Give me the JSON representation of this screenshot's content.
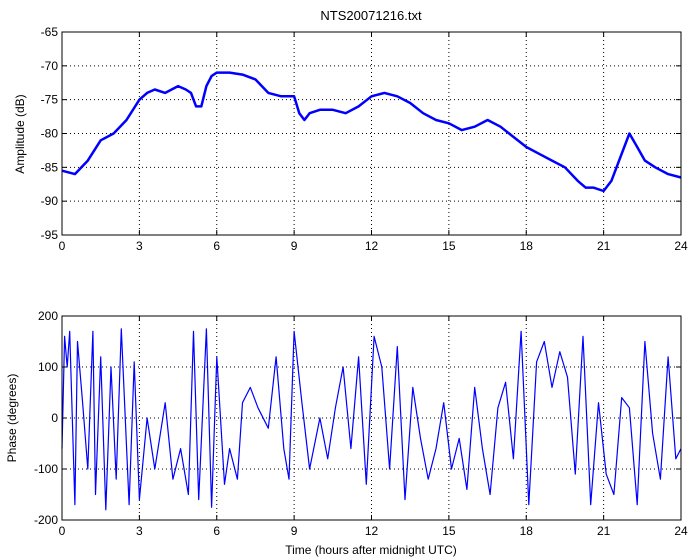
{
  "title": "NTS20071216.txt",
  "chart_data": [
    {
      "type": "line",
      "title": "NTS20071216.txt",
      "xlabel": "",
      "ylabel": "Amplitude (dB)",
      "xlim": [
        0,
        24
      ],
      "ylim": [
        -95,
        -65
      ],
      "xticks": [
        0,
        3,
        6,
        9,
        12,
        15,
        18,
        21,
        24
      ],
      "yticks": [
        -95,
        -90,
        -85,
        -80,
        -75,
        -70,
        -65
      ],
      "grid": true,
      "color": "#0000ff",
      "series": [
        {
          "x": [
            0,
            0.5,
            1,
            1.5,
            2,
            2.5,
            3,
            3.3,
            3.6,
            4,
            4.5,
            4.8,
            5,
            5.2,
            5.4,
            5.6,
            5.8,
            6,
            6.5,
            7,
            7.5,
            8,
            8.5,
            9,
            9.2,
            9.4,
            9.6,
            10,
            10.5,
            11,
            11.5,
            12,
            12.5,
            13,
            13.5,
            14,
            14.5,
            15,
            15.5,
            16,
            16.5,
            17,
            17.5,
            18,
            18.5,
            19,
            19.5,
            20,
            20.3,
            20.6,
            21,
            21.3,
            21.6,
            22,
            22.3,
            22.6,
            23,
            23.5,
            24
          ],
          "y": [
            -85.5,
            -86,
            -84,
            -81,
            -80,
            -78,
            -75,
            -74,
            -73.5,
            -74,
            -73,
            -73.5,
            -74,
            -76,
            -76,
            -73,
            -71.5,
            -71,
            -71,
            -71.3,
            -72,
            -74,
            -74.5,
            -74.5,
            -77,
            -78,
            -77,
            -76.5,
            -76.5,
            -77,
            -76,
            -74.5,
            -74,
            -74.5,
            -75.5,
            -77,
            -78,
            -78.5,
            -79.5,
            -79,
            -78,
            -79,
            -80.5,
            -82,
            -83,
            -84,
            -85,
            -87,
            -88,
            -88,
            -88.5,
            -87,
            -84,
            -80,
            -82,
            -84,
            -85,
            -86,
            -86.5
          ]
        }
      ]
    },
    {
      "type": "line",
      "title": "",
      "xlabel": "Time (hours after midnight UTC)",
      "ylabel": "Phase (degrees)",
      "xlim": [
        0,
        24
      ],
      "ylim": [
        -200,
        200
      ],
      "xticks": [
        0,
        3,
        6,
        9,
        12,
        15,
        18,
        21,
        24
      ],
      "yticks": [
        -200,
        -100,
        0,
        100,
        200
      ],
      "grid": true,
      "color": "#0000ff",
      "series": [
        {
          "x": [
            0,
            0.1,
            0.2,
            0.3,
            0.5,
            0.6,
            0.8,
            1,
            1.2,
            1.3,
            1.5,
            1.7,
            1.9,
            2.1,
            2.3,
            2.6,
            2.8,
            3,
            3.3,
            3.6,
            4,
            4.3,
            4.6,
            4.9,
            5.1,
            5.3,
            5.6,
            5.8,
            6,
            6.3,
            6.5,
            6.8,
            7,
            7.3,
            7.6,
            8,
            8.3,
            8.6,
            8.8,
            9,
            9.3,
            9.6,
            10,
            10.3,
            10.6,
            10.9,
            11.2,
            11.5,
            11.8,
            12.1,
            12.4,
            12.7,
            13,
            13.3,
            13.6,
            13.9,
            14.2,
            14.5,
            14.8,
            15.1,
            15.4,
            15.7,
            16,
            16.3,
            16.6,
            16.9,
            17.2,
            17.5,
            17.8,
            18.1,
            18.4,
            18.7,
            19,
            19.3,
            19.6,
            19.9,
            20.2,
            20.5,
            20.8,
            21.1,
            21.4,
            21.7,
            22,
            22.3,
            22.6,
            22.9,
            23.2,
            23.5,
            23.8,
            24
          ],
          "y": [
            -60,
            160,
            100,
            170,
            -170,
            150,
            30,
            -100,
            170,
            -150,
            120,
            -180,
            100,
            -120,
            175,
            -170,
            110,
            -160,
            0,
            -100,
            30,
            -120,
            -60,
            -150,
            170,
            -160,
            175,
            -175,
            120,
            -130,
            -60,
            -120,
            30,
            60,
            20,
            -20,
            120,
            -60,
            -120,
            170,
            30,
            -100,
            0,
            -80,
            20,
            100,
            -60,
            120,
            -130,
            160,
            100,
            -100,
            140,
            -160,
            60,
            -40,
            -120,
            -60,
            30,
            -100,
            -40,
            -140,
            60,
            -60,
            -150,
            20,
            70,
            -80,
            170,
            -170,
            110,
            150,
            60,
            130,
            80,
            -110,
            160,
            -170,
            30,
            -110,
            -150,
            40,
            20,
            -170,
            150,
            -30,
            -120,
            120,
            -80,
            -60
          ]
        }
      ]
    }
  ]
}
